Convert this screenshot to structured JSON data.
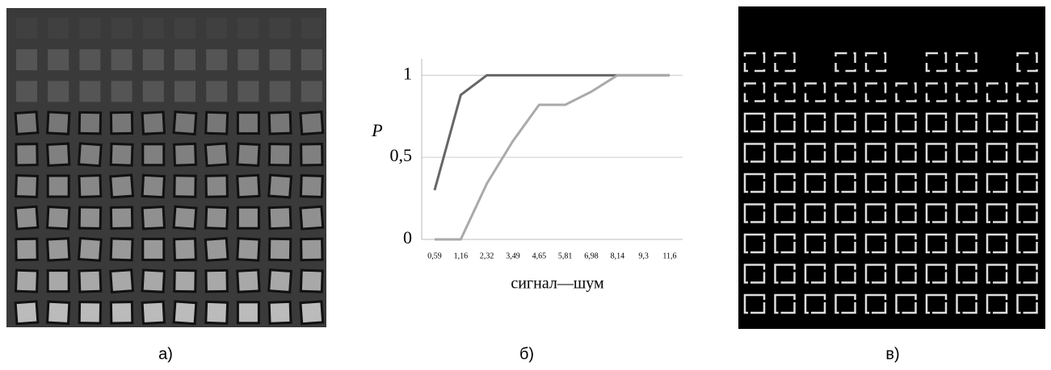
{
  "panels": [
    "а)",
    "б)",
    "в)"
  ],
  "chart_data": {
    "type": "line",
    "y_label": "P",
    "x_label": "сигнал—шум",
    "categories": [
      "0,59",
      "1,16",
      "2,32",
      "3,49",
      "4,65",
      "5,81",
      "6,98",
      "8,14",
      "9,3",
      "11,6"
    ],
    "series": [
      {
        "color": "#666666",
        "values": [
          0.3,
          0.88,
          1,
          1,
          1,
          1,
          1,
          1,
          1,
          1
        ]
      },
      {
        "color": "#aaaaaa",
        "values": [
          0,
          0,
          0.34,
          0.6,
          0.82,
          0.82,
          0.9,
          1,
          1,
          1
        ]
      }
    ],
    "ylim": [
      0,
      1.1
    ],
    "yticks": [
      0,
      {
        "value": 0.5,
        "label": "0,5"
      },
      1
    ],
    "grid": true
  }
}
